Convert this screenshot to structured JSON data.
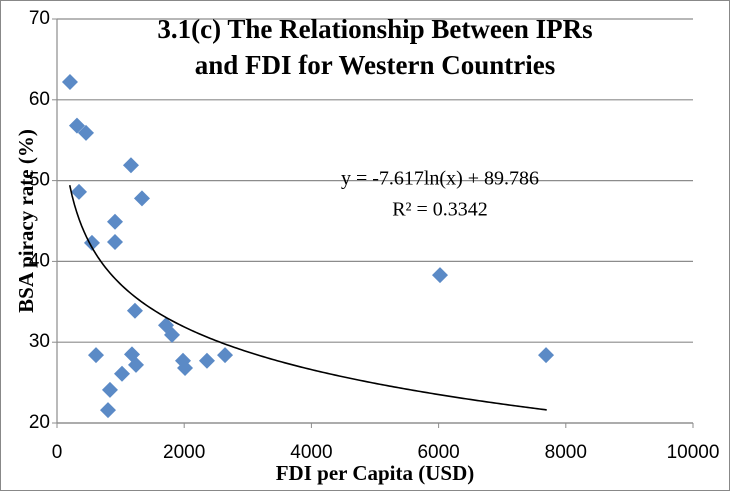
{
  "chart_data": {
    "type": "scatter",
    "title": [
      "3.1(c) The Relationship Between IPRs",
      "and FDI for Western Countries"
    ],
    "x_label": "FDI per Capita (USD)",
    "y_label": "BSA piracy rate (%)",
    "x": [
      204,
      314,
      456,
      346,
      550,
      613,
      1163,
      912,
      912,
      1336,
      1226,
      1179,
      1242,
      1022,
      833,
      802,
      1714,
      1808,
      1981,
      2013,
      2358,
      2642,
      6022,
      7689
    ],
    "values": [
      62.2,
      56.8,
      55.9,
      48.6,
      42.3,
      28.4,
      51.9,
      44.9,
      42.4,
      47.8,
      33.9,
      28.5,
      27.2,
      26.1,
      24.1,
      21.6,
      32.1,
      30.9,
      27.7,
      26.8,
      27.7,
      28.4,
      38.3,
      28.4
    ],
    "color": "#5b8ac6",
    "xlim": [
      0,
      10000
    ],
    "xticks": [
      0,
      2000,
      4000,
      6000,
      8000,
      10000
    ],
    "ylim": [
      20,
      70
    ],
    "yticks": [
      20,
      30,
      40,
      50,
      60,
      70
    ],
    "grid": true,
    "trendline": {
      "type": "log",
      "a": -7.617,
      "b": 89.786,
      "xrange": [
        200,
        7700
      ],
      "color": "#000000",
      "equation": "y = -7.617ln(x) + 89.786",
      "r2": "R² = 0.3342"
    }
  }
}
